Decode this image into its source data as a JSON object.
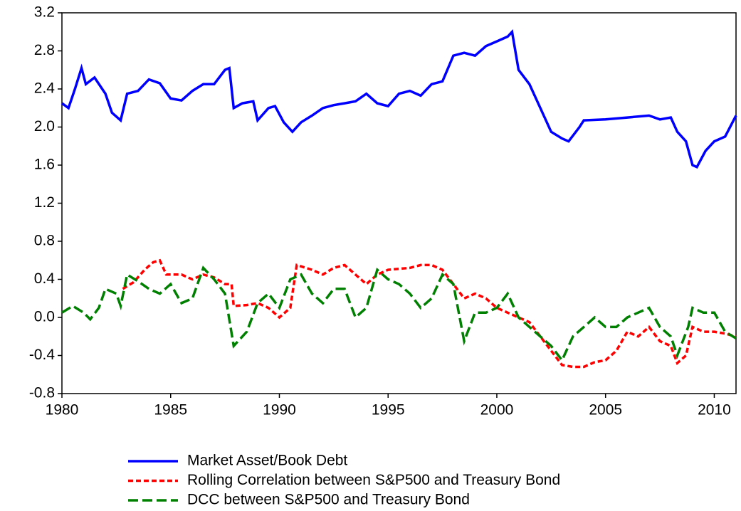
{
  "chart_data": {
    "type": "line",
    "xlim": [
      1980,
      2011
    ],
    "xticks": [
      1980,
      1985,
      1990,
      1995,
      2000,
      2005,
      2010
    ],
    "ylim": [
      -0.8,
      3.2
    ],
    "yticks": [
      -0.8,
      -0.4,
      {
        "value": 0,
        "label": "0.0"
      },
      0.4,
      0.8,
      1.2,
      1.6,
      {
        "value": 2,
        "label": "2.0"
      },
      2.4,
      2.8,
      3.2
    ],
    "series": [
      {
        "name": "Market Asset/Book Debt",
        "color": "#0000ff",
        "dash": "solid",
        "x": [
          1980.0,
          1980.3,
          1980.6,
          1980.9,
          1981.1,
          1981.5,
          1982.0,
          1982.3,
          1982.7,
          1983.0,
          1983.5,
          1984.0,
          1984.5,
          1985.0,
          1985.5,
          1986.0,
          1986.5,
          1987.0,
          1987.5,
          1987.7,
          1987.9,
          1988.3,
          1988.8,
          1989.0,
          1989.5,
          1989.8,
          1990.2,
          1990.6,
          1991.0,
          1991.5,
          1992.0,
          1992.5,
          1993.0,
          1993.5,
          1994.0,
          1994.5,
          1995.0,
          1995.5,
          1996.0,
          1996.5,
          1997.0,
          1997.5,
          1998.0,
          1998.5,
          1999.0,
          1999.5,
          2000.0,
          2000.5,
          2000.7,
          2001.0,
          2001.5,
          2002.0,
          2002.5,
          2003.0,
          2003.3,
          2003.8,
          2004.0,
          2005.0,
          2006.0,
          2007.0,
          2007.5,
          2008.0,
          2008.3,
          2008.7,
          2009.0,
          2009.2,
          2009.6,
          2010.0,
          2010.5,
          2011.0
        ],
        "values": [
          2.25,
          2.2,
          2.4,
          2.62,
          2.45,
          2.52,
          2.35,
          2.15,
          2.07,
          2.35,
          2.38,
          2.5,
          2.46,
          2.3,
          2.28,
          2.38,
          2.45,
          2.45,
          2.6,
          2.62,
          2.2,
          2.25,
          2.27,
          2.07,
          2.2,
          2.22,
          2.05,
          1.95,
          2.05,
          2.12,
          2.2,
          2.23,
          2.25,
          2.27,
          2.35,
          2.25,
          2.22,
          2.35,
          2.38,
          2.33,
          2.45,
          2.48,
          2.75,
          2.78,
          2.75,
          2.85,
          2.9,
          2.95,
          3.0,
          2.6,
          2.45,
          2.2,
          1.95,
          1.88,
          1.85,
          2.0,
          2.07,
          2.08,
          2.1,
          2.12,
          2.08,
          2.1,
          1.95,
          1.85,
          1.6,
          1.58,
          1.75,
          1.85,
          1.9,
          2.12
        ]
      },
      {
        "name": "Rolling Correlation between S&P500 and Treasury Bond",
        "color": "#ff0000",
        "dash": "dotted",
        "x": [
          1982.8,
          1983.3,
          1983.8,
          1984.2,
          1984.5,
          1984.8,
          1985.5,
          1986.0,
          1986.5,
          1987.0,
          1987.5,
          1987.8,
          1987.9,
          1988.5,
          1989.0,
          1989.5,
          1990.0,
          1990.5,
          1990.8,
          1991.5,
          1992.0,
          1992.5,
          1993.0,
          1993.5,
          1994.0,
          1994.5,
          1995.0,
          1996.0,
          1996.5,
          1997.0,
          1997.5,
          1998.0,
          1998.5,
          1999.0,
          1999.5,
          2000.0,
          2000.5,
          2001.0,
          2001.5,
          2002.0,
          2002.5,
          2003.0,
          2003.5,
          2004.0,
          2004.5,
          2005.0,
          2005.5,
          2006.0,
          2006.5,
          2007.0,
          2007.5,
          2008.0,
          2008.3,
          2008.7,
          2009.0,
          2009.5,
          2010.0,
          2010.5,
          2011.0
        ],
        "values": [
          0.3,
          0.37,
          0.5,
          0.58,
          0.6,
          0.45,
          0.45,
          0.4,
          0.45,
          0.42,
          0.35,
          0.35,
          0.12,
          0.13,
          0.15,
          0.1,
          0.0,
          0.1,
          0.55,
          0.5,
          0.45,
          0.52,
          0.55,
          0.45,
          0.35,
          0.45,
          0.5,
          0.52,
          0.55,
          0.55,
          0.5,
          0.35,
          0.2,
          0.25,
          0.2,
          0.1,
          0.05,
          0.0,
          -0.05,
          -0.2,
          -0.35,
          -0.5,
          -0.52,
          -0.52,
          -0.47,
          -0.45,
          -0.35,
          -0.15,
          -0.2,
          -0.1,
          -0.25,
          -0.3,
          -0.48,
          -0.4,
          -0.1,
          -0.15,
          -0.15,
          -0.17,
          -0.2
        ]
      },
      {
        "name": "DCC between S&P500 and Treasury Bond",
        "color": "#008000",
        "dash": "dashed",
        "x": [
          1980.0,
          1980.5,
          1981.0,
          1981.3,
          1981.7,
          1982.0,
          1982.5,
          1982.7,
          1983.0,
          1983.5,
          1984.0,
          1984.5,
          1985.0,
          1985.5,
          1986.0,
          1986.5,
          1987.0,
          1987.5,
          1987.9,
          1988.5,
          1989.0,
          1989.5,
          1990.0,
          1990.5,
          1991.0,
          1991.5,
          1992.0,
          1992.5,
          1993.0,
          1993.5,
          1994.0,
          1994.5,
          1995.0,
          1995.5,
          1996.0,
          1996.5,
          1997.0,
          1997.5,
          1998.0,
          1998.5,
          1999.0,
          1999.5,
          2000.0,
          2000.5,
          2001.0,
          2001.5,
          2002.0,
          2002.5,
          2003.0,
          2003.5,
          2004.0,
          2004.5,
          2005.0,
          2005.5,
          2006.0,
          2006.5,
          2007.0,
          2007.5,
          2008.0,
          2008.3,
          2008.8,
          2009.0,
          2009.5,
          2010.0,
          2010.5,
          2011.0
        ],
        "values": [
          0.05,
          0.12,
          0.05,
          -0.02,
          0.1,
          0.3,
          0.25,
          0.12,
          0.45,
          0.38,
          0.3,
          0.25,
          0.35,
          0.15,
          0.2,
          0.52,
          0.4,
          0.25,
          -0.3,
          -0.15,
          0.15,
          0.25,
          0.1,
          0.4,
          0.45,
          0.25,
          0.15,
          0.3,
          0.3,
          0.0,
          0.1,
          0.5,
          0.4,
          0.35,
          0.25,
          0.1,
          0.2,
          0.45,
          0.35,
          -0.25,
          0.05,
          0.05,
          0.1,
          0.25,
          0.0,
          -0.1,
          -0.2,
          -0.3,
          -0.45,
          -0.2,
          -0.1,
          0.0,
          -0.1,
          -0.1,
          0.0,
          0.05,
          0.1,
          -0.1,
          -0.2,
          -0.4,
          -0.1,
          0.1,
          0.05,
          0.05,
          -0.15,
          -0.22
        ]
      }
    ]
  }
}
